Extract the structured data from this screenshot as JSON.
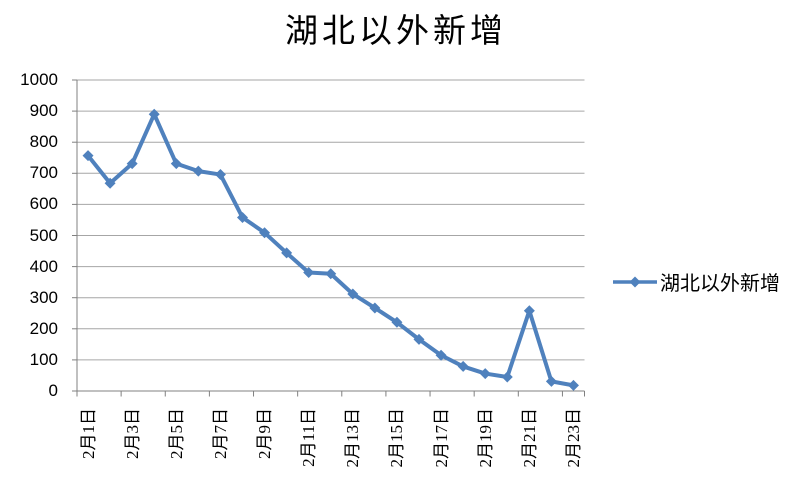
{
  "title": "湖北以外新增",
  "legend": {
    "position": "right",
    "series_label": "湖北以外新增",
    "marker": "line-with-diamond"
  },
  "y_axis": {
    "min": 0,
    "max": 1000,
    "step": 100,
    "tick_labels": [
      "0",
      "100",
      "200",
      "300",
      "400",
      "500",
      "600",
      "700",
      "800",
      "900",
      "1000"
    ]
  },
  "x_axis": {
    "tick_labels": [
      "2月1日",
      "2月3日",
      "2月5日",
      "2月7日",
      "2月9日",
      "2月11日",
      "2月13日",
      "2月15日",
      "2月17日",
      "2月19日",
      "2月21日",
      "2月23日"
    ]
  },
  "colors": {
    "series": "#4F81BD",
    "gridline": "#A6A6A6",
    "axis": "#808080",
    "text": "#000000",
    "background": "#FFFFFF"
  },
  "chart_data": {
    "type": "line",
    "title": "湖北以外新增",
    "categories": [
      "2月1日",
      "2月2日",
      "2月3日",
      "2月4日",
      "2月5日",
      "2月6日",
      "2月7日",
      "2月8日",
      "2月9日",
      "2月10日",
      "2月11日",
      "2月12日",
      "2月13日",
      "2月14日",
      "2月15日",
      "2月16日",
      "2月17日",
      "2月18日",
      "2月19日",
      "2月20日",
      "2月21日",
      "2月22日",
      "2月23日"
    ],
    "series": [
      {
        "name": "湖北以外新增",
        "values": [
          757,
          668,
          731,
          890,
          731,
          707,
          696,
          558,
          509,
          444,
          381,
          377,
          312,
          267,
          221,
          166,
          115,
          79,
          56,
          45,
          258,
          31,
          18
        ]
      }
    ],
    "xlabel": "",
    "ylabel": "",
    "ylim": [
      0,
      1000
    ],
    "ytick_step": 100,
    "xtick_every": 2,
    "grid": true,
    "legend_position": "right",
    "marker": "diamond",
    "line_color": "#4F81BD"
  }
}
